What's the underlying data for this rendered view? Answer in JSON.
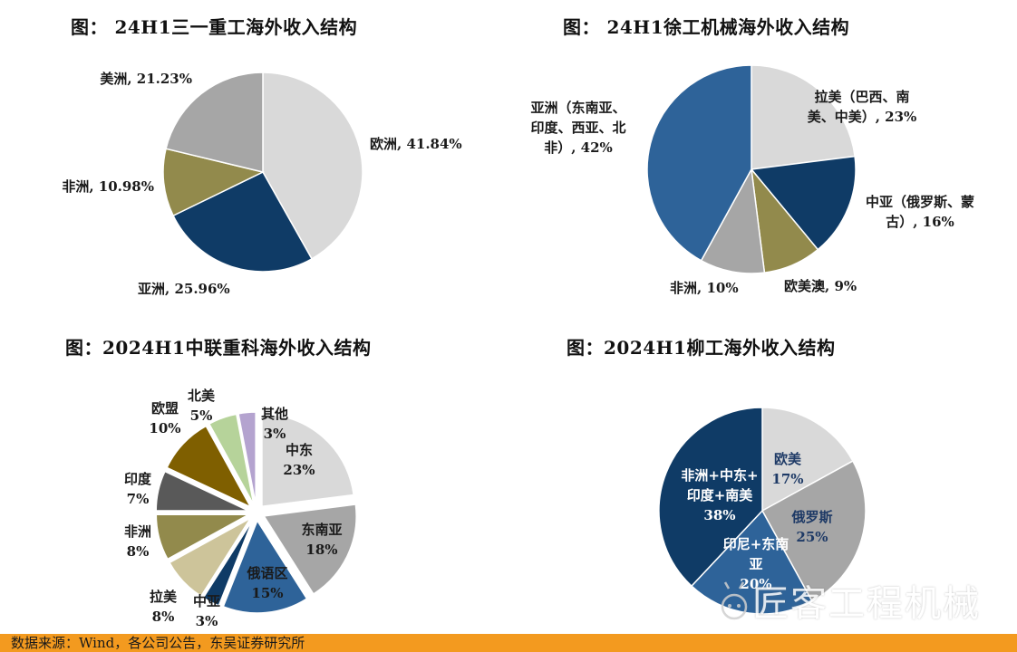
{
  "chart_data": [
    {
      "type": "pie",
      "title": "图： 24H1三一重工海外收入结构",
      "slices": [
        {
          "label": "欧洲, 41.84%",
          "value": 41.84,
          "color": "#d9d9d9"
        },
        {
          "label": "亚洲, 25.96%",
          "value": 25.96,
          "color": "#0f3b66"
        },
        {
          "label": "非洲, 10.98%",
          "value": 10.98,
          "color": "#928a4c"
        },
        {
          "label": "美洲, 21.23%",
          "value": 21.23,
          "color": "#a6a6a6"
        }
      ]
    },
    {
      "type": "pie",
      "title": "图： 24H1徐工机械海外收入结构",
      "slices": [
        {
          "label": "拉美（巴西、南美、中美）, 23%",
          "lines": [
            "拉美（巴西、南",
            "美、中美）, 23%"
          ],
          "value": 23,
          "color": "#d9d9d9"
        },
        {
          "label": "中亚（俄罗斯、蒙古）, 16%",
          "lines": [
            "中亚（俄罗斯、蒙",
            "古）, 16%"
          ],
          "value": 16,
          "color": "#0f3b66"
        },
        {
          "label": "欧美澳, 9%",
          "lines": [
            "欧美澳, 9%"
          ],
          "value": 9,
          "color": "#928a4c"
        },
        {
          "label": "非洲, 10%",
          "lines": [
            "非洲, 10%"
          ],
          "value": 10,
          "color": "#a6a6a6"
        },
        {
          "label": "亚洲（东南亚、印度、西亚、北非）, 42%",
          "lines": [
            "亚洲（东南亚、",
            "印度、西亚、北",
            "非）, 42%"
          ],
          "value": 42,
          "color": "#2e6399"
        }
      ]
    },
    {
      "type": "pie",
      "title": "图：2024H1中联重科海外收入结构",
      "slices": [
        {
          "name": "中东",
          "pct": "23%",
          "value": 23,
          "color": "#d9d9d9"
        },
        {
          "name": "东南亚",
          "pct": "18%",
          "value": 18,
          "color": "#a6a6a6"
        },
        {
          "name": "俄语区",
          "pct": "15%",
          "value": 15,
          "color": "#2e6399"
        },
        {
          "name": "中亚",
          "pct": "3%",
          "value": 3,
          "color": "#0f3b66"
        },
        {
          "name": "拉美",
          "pct": "8%",
          "value": 8,
          "color": "#cdc49a"
        },
        {
          "name": "非洲",
          "pct": "8%",
          "value": 8,
          "color": "#928a4c"
        },
        {
          "name": "印度",
          "pct": "7%",
          "value": 7,
          "color": "#595959"
        },
        {
          "name": "欧盟",
          "pct": "10%",
          "value": 10,
          "color": "#7f5f00"
        },
        {
          "name": "北美",
          "pct": "5%",
          "value": 5,
          "color": "#b6d39a"
        },
        {
          "name": "其他",
          "pct": "3%",
          "value": 3,
          "color": "#b4a3cf"
        }
      ]
    },
    {
      "type": "pie",
      "title": "图：2024H1柳工海外收入结构",
      "slices": [
        {
          "name": "欧美",
          "pct": "17%",
          "lines": [
            "欧美",
            "17%"
          ],
          "value": 17,
          "color": "#d9d9d9"
        },
        {
          "name": "俄罗斯",
          "pct": "25%",
          "lines": [
            "俄罗斯",
            "25%"
          ],
          "value": 25,
          "color": "#a6a6a6"
        },
        {
          "name": "印尼+东南亚",
          "pct": "20%",
          "lines": [
            "印尼+东南",
            "亚",
            "20%"
          ],
          "value": 20,
          "color": "#2e6399"
        },
        {
          "name": "非洲+中东+印度+南美",
          "pct": "38%",
          "lines": [
            "非洲+中东+",
            "印度+南美",
            "38%"
          ],
          "value": 38,
          "color": "#0f3b66"
        }
      ]
    }
  ],
  "footer": {
    "source": "数据来源：Wind，各公司公告，东吴证券研究所"
  },
  "watermark": {
    "text": "匠客工程机械"
  }
}
